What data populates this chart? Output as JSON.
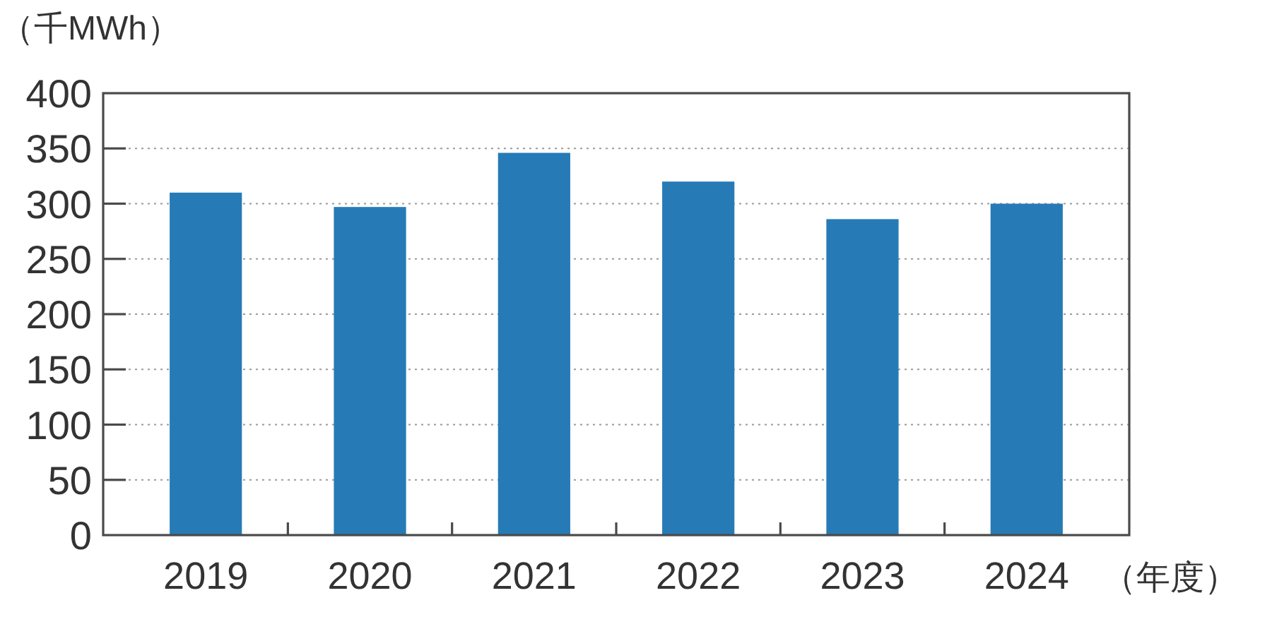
{
  "chart_data": {
    "type": "bar",
    "ylabel": "（千MWh）",
    "xlabel": "（年度）",
    "categories": [
      "2019",
      "2020",
      "2021",
      "2022",
      "2023",
      "2024"
    ],
    "values": [
      310,
      297,
      346,
      320,
      286,
      300
    ],
    "color": "#267bb6",
    "ylim": [
      0,
      400
    ],
    "yticks": [
      0,
      50,
      100,
      150,
      200,
      250,
      300,
      350,
      400
    ],
    "grid": "y"
  }
}
